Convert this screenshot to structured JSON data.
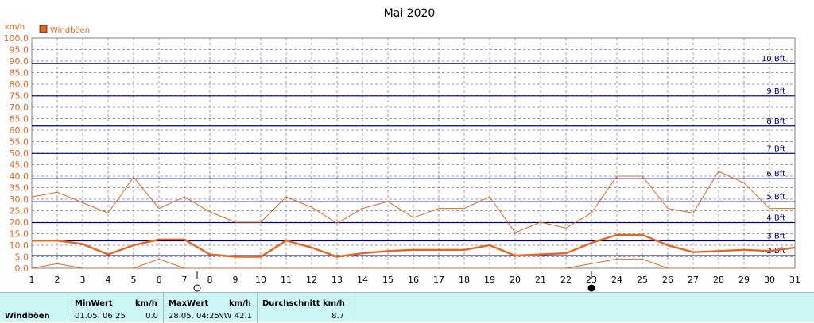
{
  "chart_data": {
    "type": "line",
    "title": "Mai 2020",
    "ylabel": "km/h",
    "ylim": [
      0,
      100
    ],
    "y_ticks": [
      "0.0",
      "5.0",
      "10.0",
      "15.0",
      "20.0",
      "25.0",
      "30.0",
      "35.0",
      "40.0",
      "45.0",
      "50.0",
      "55.0",
      "60.0",
      "65.0",
      "70.0",
      "75.0",
      "80.0",
      "85.0",
      "90.0",
      "95.0",
      "100.0"
    ],
    "x": [
      1,
      2,
      3,
      4,
      5,
      6,
      7,
      8,
      9,
      10,
      11,
      12,
      13,
      14,
      15,
      16,
      17,
      18,
      19,
      20,
      21,
      22,
      23,
      24,
      25,
      26,
      27,
      28,
      29,
      30,
      31
    ],
    "x_ticks": [
      "1",
      "2",
      "3",
      "4",
      "5",
      "6",
      "7",
      "8",
      "9",
      "10",
      "11",
      "12",
      "13",
      "14",
      "15",
      "16",
      "17",
      "18",
      "19",
      "20",
      "21",
      "22",
      "23",
      "24",
      "25",
      "26",
      "27",
      "28",
      "29",
      "30",
      "31"
    ],
    "grid": true,
    "legend_position": "top-left",
    "beaufort_lines": [
      {
        "label": "2 Bft",
        "value": 5.5
      },
      {
        "label": "3 Bft",
        "value": 11.9
      },
      {
        "label": "4 Bft",
        "value": 19.8
      },
      {
        "label": "5 Bft",
        "value": 28.9
      },
      {
        "label": "6 Bft",
        "value": 38.9
      },
      {
        "label": "7 Bft",
        "value": 49.9
      },
      {
        "label": "8 Bft",
        "value": 61.8
      },
      {
        "label": "9 Bft",
        "value": 74.9
      },
      {
        "label": "10 Bft",
        "value": 88.9
      }
    ],
    "series": [
      {
        "name": "Windböen",
        "kind": "average",
        "color": "#e8651f",
        "values": [
          12.0,
          12.0,
          10.5,
          6.0,
          10.0,
          12.5,
          12.5,
          6.0,
          5.0,
          5.0,
          12.0,
          9.0,
          5.0,
          6.5,
          7.5,
          8.0,
          8.0,
          8.0,
          10.0,
          5.5,
          6.0,
          6.5,
          11.0,
          14.5,
          14.5,
          10.0,
          7.0,
          7.5,
          8.0,
          7.5,
          9.0
        ]
      },
      {
        "kind": "max",
        "color": "#e8651f",
        "values": [
          31.0,
          33.0,
          28.5,
          24.0,
          39.5,
          26.0,
          31.0,
          24.5,
          20.0,
          20.0,
          31.0,
          26.5,
          19.5,
          26.0,
          29.0,
          22.0,
          26.0,
          26.0,
          31.0,
          15.5,
          20.0,
          17.5,
          24.0,
          40.0,
          40.0,
          26.0,
          24.0,
          42.1,
          37.0,
          26.0,
          26.0
        ]
      },
      {
        "kind": "min",
        "color": "#e8651f",
        "values": [
          0.0,
          2.0,
          0.0,
          0.0,
          0.0,
          4.0,
          0.0,
          0.0,
          0.0,
          0.0,
          0.0,
          0.0,
          0.0,
          0.0,
          0.0,
          0.0,
          0.0,
          0.0,
          0.0,
          0.0,
          0.0,
          0.0,
          2.0,
          4.0,
          4.0,
          0.0,
          0.0,
          0.0,
          0.0,
          0.0,
          0.0
        ]
      }
    ],
    "moon_phases": [
      {
        "day": 7.5,
        "phase": "full"
      },
      {
        "day": 23.0,
        "phase": "new"
      }
    ]
  },
  "stats": {
    "series_label": "Windböen",
    "min_header": "MinWert",
    "min_unit": "km/h",
    "min_datetime": "01.05.  06:25",
    "min_value": "0.0",
    "max_header": "MaxWert",
    "max_unit": "km/h",
    "max_datetime": "28.05.  04:25",
    "max_value": "NW 42.1",
    "avg_header": "Durchschnitt km/h",
    "avg_value": "8.7"
  }
}
